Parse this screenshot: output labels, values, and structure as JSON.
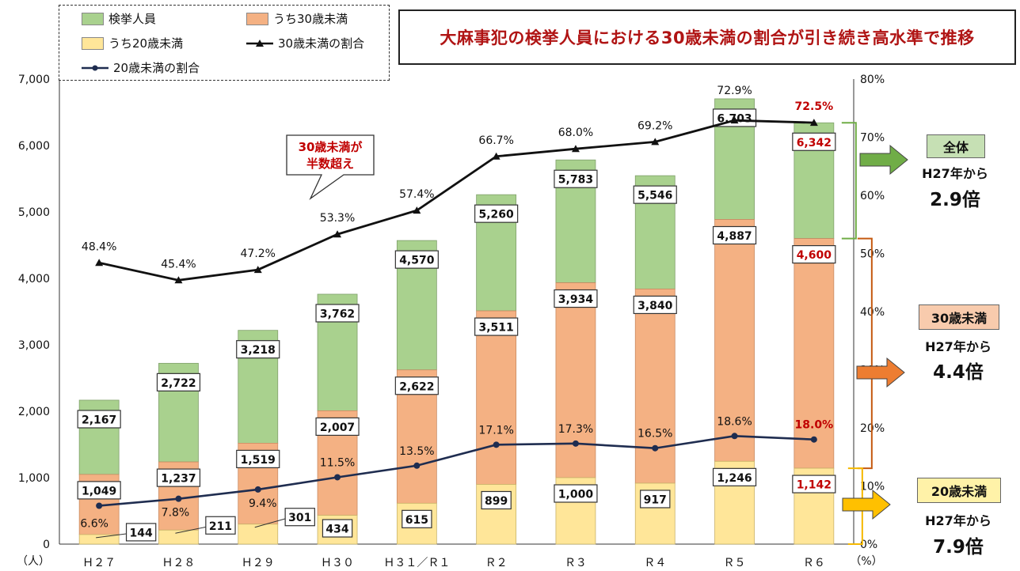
{
  "title": "大麻事犯の検挙人員における30歳未満の割合が引き続き高水準で推移",
  "legend": {
    "total": "検挙人員",
    "under30": "うち30歳未満",
    "under20": "うち20歳未満",
    "ratio30": "30歳未満の割合",
    "ratio20": "20歳未満の割合"
  },
  "callout": "30歳未満が 半数超え",
  "side": {
    "total_badge": "全体",
    "total_from": "H27年から",
    "total_mult": "2.9倍",
    "u30_badge": "30歳未満",
    "u30_from": "H27年から",
    "u30_mult": "4.4倍",
    "u20_badge": "20歳未満",
    "u20_from": "H27年から",
    "u20_mult": "7.9倍"
  },
  "colors": {
    "total": "#a9d18e",
    "under30": "#f4b183",
    "under20": "#ffe699",
    "highlight": "#c00000",
    "navy": "#1f2d50",
    "bracket_total": "#70ad47",
    "bracket_u30": "#c55a11",
    "bracket_u20": "#f5b800"
  },
  "chart_data": {
    "type": "bar",
    "categories": [
      "Ｈ２７",
      "Ｈ２８",
      "Ｈ２９",
      "Ｈ３０",
      "Ｈ３１／Ｒ１",
      "Ｒ２",
      "Ｒ３",
      "Ｒ４",
      "Ｒ５",
      "Ｒ６"
    ],
    "series": [
      {
        "name": "検挙人員",
        "values": [
          2167,
          2722,
          3218,
          3762,
          4570,
          5260,
          5783,
          5546,
          6703,
          6342
        ],
        "labels": [
          "2,167",
          "2,722",
          "3,218",
          "3,762",
          "4,570",
          "5,260",
          "5,783",
          "5,546",
          "6,703",
          "6,342"
        ]
      },
      {
        "name": "うち30歳未満",
        "values": [
          1049,
          1237,
          1519,
          2007,
          2622,
          3511,
          3934,
          3840,
          4887,
          4600
        ],
        "labels": [
          "1,049",
          "1,237",
          "1,519",
          "2,007",
          "2,622",
          "3,511",
          "3,934",
          "3,840",
          "4,887",
          "4,600"
        ]
      },
      {
        "name": "うち20歳未満",
        "values": [
          144,
          211,
          301,
          434,
          615,
          899,
          1000,
          917,
          1246,
          1142
        ],
        "labels": [
          "144",
          "211",
          "301",
          "434",
          "615",
          "899",
          "1,000",
          "917",
          "1,246",
          "1,142"
        ]
      },
      {
        "name": "30歳未満の割合",
        "axis": "right",
        "values": [
          48.4,
          45.4,
          47.2,
          53.3,
          57.4,
          66.7,
          68.0,
          69.2,
          72.9,
          72.5
        ],
        "labels": [
          "48.4%",
          "45.4%",
          "47.2%",
          "53.3%",
          "57.4%",
          "66.7%",
          "68.0%",
          "69.2%",
          "72.9%",
          "72.5%"
        ]
      },
      {
        "name": "20歳未満の割合",
        "axis": "right",
        "values": [
          6.6,
          7.8,
          9.4,
          11.5,
          13.5,
          17.1,
          17.3,
          16.5,
          18.6,
          18.0
        ],
        "labels": [
          "6.6%",
          "7.8%",
          "9.4%",
          "11.5%",
          "13.5%",
          "17.1%",
          "17.3%",
          "16.5%",
          "18.6%",
          "18.0%"
        ]
      }
    ],
    "left_axis": {
      "unit": "（人）",
      "ticks": [
        "0",
        "1,000",
        "2,000",
        "3,000",
        "4,000",
        "5,000",
        "6,000",
        "7,000"
      ],
      "ylim": [
        0,
        7000
      ]
    },
    "right_axis": {
      "unit": "（%）",
      "ticks": [
        "0%",
        "10%",
        "20%",
        "30%",
        "40%",
        "50%",
        "60%",
        "70%",
        "80%"
      ],
      "ylim": [
        0,
        80
      ]
    },
    "highlight_index": 9
  }
}
